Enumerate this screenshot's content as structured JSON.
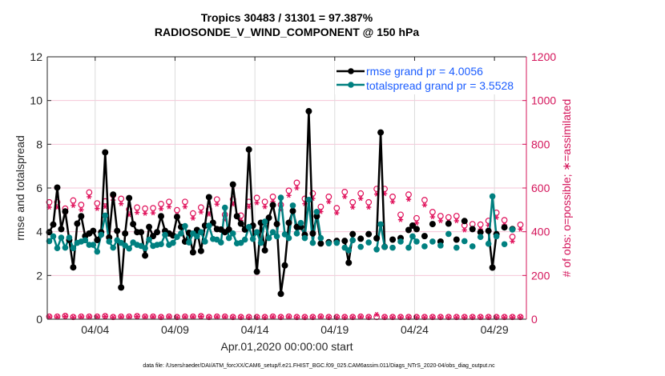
{
  "chart_data": {
    "type": "line",
    "title": "Tropics 30483 / 31301 = 97.387%",
    "subtitle": "RADIOSONDE_V_WIND_COMPONENT @ 150 hPa",
    "xlabel": "Apr.01,2020 00:00:00 start",
    "ylabel": "rmse and totalspread",
    "ylabel_right": "# of obs: o=possible; ∗=assimilated",
    "footer": "data file: /Users/raeder/DAI/ATM_forcXX/CAM6_setup/f.e21.FHIST_BGC.f09_025.CAM6assim.011/Diags_NTrS_2020-04/obs_diag_output.nc",
    "xlim_days": [
      0,
      30
    ],
    "ylim": [
      0,
      12
    ],
    "ylim_right": [
      0,
      1200
    ],
    "yticks": [
      "0",
      "2",
      "4",
      "6",
      "8",
      "10",
      "12"
    ],
    "yticks_right": [
      "0",
      "200",
      "400",
      "600",
      "800",
      "1000",
      "1200"
    ],
    "xticks": [
      {
        "day": 3,
        "label": "04/04"
      },
      {
        "day": 8,
        "label": "04/09"
      },
      {
        "day": 13,
        "label": "04/14"
      },
      {
        "day": 18,
        "label": "04/19"
      },
      {
        "day": 23,
        "label": "04/24"
      },
      {
        "day": 28,
        "label": "04/29"
      }
    ],
    "grid": true,
    "legend_position": "top-right",
    "time_step_days": 0.25,
    "time_start_days": 0.125,
    "colors": {
      "rmse": "#000000",
      "spread": "#008080",
      "obs": "#e0105a",
      "legend_text": "#1a5cff",
      "right_axis": "#d4145a"
    },
    "series": [
      {
        "name": "rmse grand pr = 4.0056",
        "values": [
          3.98,
          4.33,
          6.02,
          4.12,
          4.93,
          3.62,
          2.37,
          4.37,
          4.71,
          3.8,
          3.92,
          4.04,
          3.62,
          3.98,
          7.63,
          3.74,
          5.7,
          4.04,
          1.45,
          3.92,
          5.54,
          4.35,
          3.98,
          3.98,
          2.91,
          4.22,
          3.8,
          3.98,
          4.71,
          4.04,
          3.92,
          3.83,
          4.68,
          4.22,
          3.55,
          3.95,
          3.06,
          4.08,
          3.12,
          4.28,
          5.58,
          4.41,
          4.12,
          4.1,
          3.98,
          4.1,
          6.16,
          4.71,
          4.37,
          4.1,
          7.76,
          4.28,
          2.17,
          4.41,
          3.15,
          4.64,
          5.22,
          4.35,
          1.16,
          2.46,
          4.41,
          4.95,
          4.22,
          4.22,
          3.86,
          9.51,
          3.92,
          4.71,
          3.46,
          null,
          3.52,
          null,
          3.58,
          null,
          3.58,
          2.58,
          3.89,
          null,
          3.68,
          null,
          3.89,
          null,
          3.7,
          8.54,
          3.31,
          null,
          3.64,
          null,
          3.71,
          null,
          4.08,
          4.28,
          4.12,
          null,
          3.8,
          null,
          4.35,
          null,
          3.55,
          null,
          4.37,
          null,
          3.64,
          null,
          4.49,
          null,
          4.12,
          null,
          3.98,
          null,
          4.04,
          2.36,
          3.89,
          null,
          4.2,
          null,
          4.12,
          null,
          null
        ]
      },
      {
        "name": "totalspread grand pr = 3.5528",
        "values": [
          3.57,
          3.79,
          3.25,
          3.73,
          3.27,
          3.73,
          3.25,
          3.49,
          3.55,
          3.61,
          3.4,
          3.4,
          3.09,
          3.86,
          4.74,
          3.55,
          3.27,
          3.61,
          3.49,
          3.37,
          3.23,
          3.51,
          3.4,
          3.35,
          3.25,
          3.64,
          3.35,
          3.4,
          3.43,
          3.86,
          3.4,
          3.49,
          3.76,
          3.92,
          4.26,
          3.51,
          3.92,
          3.79,
          3.98,
          3.55,
          4.28,
          3.67,
          3.64,
          3.51,
          5.1,
          3.71,
          3.92,
          3.47,
          3.49,
          3.64,
          4.22,
          3.67,
          3.98,
          3.49,
          4.46,
          3.71,
          3.98,
          3.79,
          5.56,
          3.88,
          3.71,
          5.2,
          3.92,
          4.4,
          3.71,
          5.46,
          3.49,
          4.91,
          3.71,
          null,
          3.47,
          null,
          3.49,
          null,
          3.27,
          3.15,
          3.61,
          null,
          3.31,
          null,
          3.51,
          null,
          3.19,
          4.34,
          3.31,
          null,
          3.27,
          null,
          3.55,
          null,
          3.27,
          3.79,
          3.55,
          null,
          3.33,
          null,
          3.55,
          null,
          3.37,
          null,
          3.9,
          null,
          3.27,
          null,
          3.57,
          null,
          3.33,
          null,
          3.76,
          null,
          3.45,
          5.62,
          3.79,
          null,
          3.43,
          null,
          4.1,
          null,
          null
        ]
      }
    ],
    "obs_time_step_days": 0.5,
    "obs_possible": [
      535,
      535,
      506,
      543,
      523,
      580,
      530,
      539,
      567,
      551,
      502,
      511,
      506,
      508,
      527,
      537,
      499,
      537,
      484,
      511,
      502,
      548,
      478,
      548,
      474,
      537,
      555,
      537,
      560,
      523,
      588,
      624,
      551,
      575,
      514,
      560,
      508,
      582,
      535,
      575,
      535,
      596,
      596,
      560,
      478,
      570,
      462,
      545,
      490,
      472,
      466,
      472,
      429,
      435,
      433,
      450,
      487,
      453,
      377,
      432
    ],
    "obs_assimilated": [
      512,
      512,
      484,
      520,
      500,
      560,
      506,
      515,
      545,
      528,
      478,
      488,
      484,
      486,
      505,
      514,
      476,
      514,
      462,
      490,
      480,
      526,
      455,
      526,
      452,
      514,
      532,
      514,
      538,
      500,
      566,
      600,
      528,
      552,
      492,
      537,
      486,
      560,
      512,
      552,
      512,
      572,
      574,
      537,
      455,
      548,
      440,
      522,
      468,
      450,
      445,
      450,
      408,
      415,
      412,
      430,
      465,
      432,
      356,
      412
    ],
    "obs_possible_low": [
      12,
      12,
      15,
      10,
      12,
      12,
      12,
      14,
      10,
      12,
      12,
      14,
      12,
      12,
      10,
      12,
      10,
      12,
      12,
      14,
      10,
      12,
      12,
      10,
      10,
      10,
      10,
      10,
      12,
      10,
      12,
      10,
      10,
      10,
      12,
      10,
      10,
      10,
      10,
      12,
      10,
      10,
      10,
      10,
      10,
      10,
      10,
      10,
      10,
      10,
      10,
      10,
      10,
      10,
      10,
      10,
      10,
      10,
      10,
      10
    ],
    "obs_assimilated_low": [
      10,
      10,
      13,
      8,
      10,
      10,
      10,
      12,
      8,
      10,
      10,
      12,
      10,
      10,
      8,
      10,
      8,
      10,
      10,
      12,
      8,
      10,
      10,
      8,
      8,
      8,
      8,
      8,
      10,
      8,
      10,
      8,
      8,
      8,
      10,
      8,
      8,
      8,
      8,
      10,
      8,
      22,
      8,
      8,
      8,
      8,
      8,
      8,
      8,
      8,
      8,
      8,
      8,
      8,
      8,
      8,
      8,
      8,
      8,
      8
    ]
  }
}
